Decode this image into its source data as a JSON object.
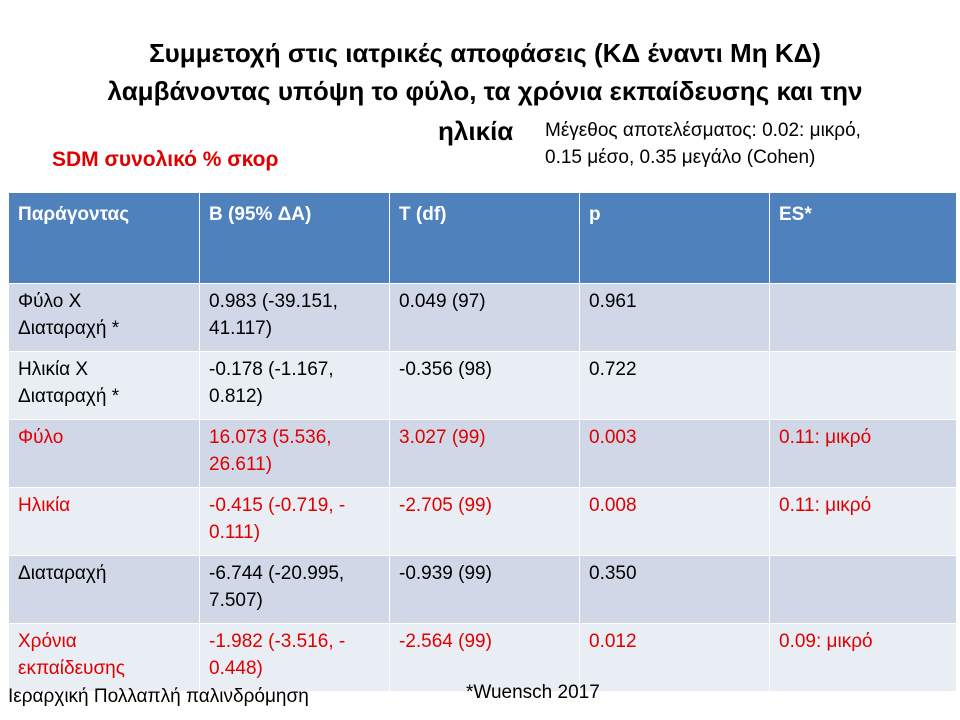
{
  "title": {
    "line1": "Συμμετοχή στις ιατρικές αποφάσεις (ΚΔ έναντι Μη ΚΔ)",
    "line2": "λαμβάνοντας υπόψη το φύλο, τα χρόνια εκπαίδευσης και την",
    "line3": "ηλικία"
  },
  "effect_note": {
    "line1": "Μέγεθος αποτελέσματος: 0.02: μικρό,",
    "line2": "0.15 μέσο, 0.35 μεγάλο (Cohen)"
  },
  "subtitle": "SDM συνολικό % σκορ",
  "colors": {
    "header_bg": "#4f81bd",
    "row_odd": "#d0d8e8",
    "row_even": "#e9edf4",
    "significant": "#e00000"
  },
  "table": {
    "headers": [
      "Παράγοντας",
      "B (95% ΔΑ)",
      "T (df)",
      "p",
      "ES*"
    ],
    "rows": [
      {
        "factor": [
          "Φύλο X",
          "Διαταραχή *"
        ],
        "b": [
          "0.983 (-39.151,",
          "41.117)"
        ],
        "t": "0.049 (97)",
        "p": "0.961",
        "es": ""
      },
      {
        "factor": [
          "Ηλικία X",
          "Διαταραχή *"
        ],
        "b": [
          "-0.178 (-1.167,",
          "0.812)"
        ],
        "t": "-0.356 (98)",
        "p": "0.722",
        "es": ""
      },
      {
        "factor": [
          "Φύλο",
          ""
        ],
        "b": [
          "16.073 (5.536,",
          "26.611)"
        ],
        "t": "3.027 (99)",
        "p": "0.003",
        "es": "0.11: μικρό"
      },
      {
        "factor": [
          "Ηλικία",
          ""
        ],
        "b": [
          "-0.415 (-0.719, -",
          "0.111)"
        ],
        "t": "-2.705 (99)",
        "p": "0.008",
        "es": "0.11: μικρό"
      },
      {
        "factor": [
          "Διαταραχή",
          ""
        ],
        "b": [
          "-6.744 (-20.995,",
          "7.507)"
        ],
        "t": "-0.939 (99)",
        "p": "0.350",
        "es": ""
      },
      {
        "factor": [
          "Χρόνια",
          "εκπαίδευσης"
        ],
        "b": [
          "-1.982 (-3.516, -",
          "0.448)"
        ],
        "t": "-2.564 (99)",
        "p": "0.012",
        "es": "0.09: μικρό"
      }
    ]
  },
  "footer": {
    "method": "Ιεραρχική Πολλαπλή παλινδρόμηση",
    "citation": "*Wuensch 2017"
  }
}
